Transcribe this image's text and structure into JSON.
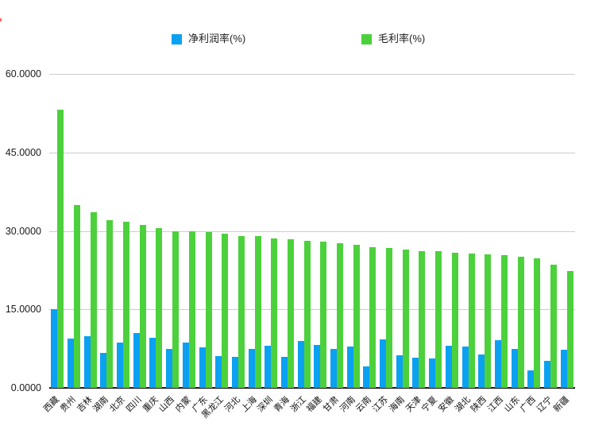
{
  "legend": {
    "items": [
      {
        "label": "净利润率(%)"
      },
      {
        "label": "毛利率(%)"
      }
    ]
  },
  "chart_data": {
    "type": "bar",
    "title": "",
    "xlabel": "",
    "ylabel": "",
    "grid": true,
    "legend_position": "top",
    "ylim": [
      0,
      60
    ],
    "yticks": [
      0,
      15,
      30,
      45,
      60
    ],
    "ytick_labels": [
      "0.0000",
      "15.0000",
      "30.0000",
      "45.0000",
      "60.0000"
    ],
    "categories": [
      "西藏",
      "贵州",
      "吉林",
      "湖南",
      "北京",
      "四川",
      "重庆",
      "山西",
      "内蒙",
      "广东",
      "黑龙江",
      "河北",
      "上海",
      "深圳",
      "青海",
      "浙江",
      "福建",
      "甘肃",
      "河南",
      "云南",
      "江苏",
      "海南",
      "天津",
      "宁夏",
      "安徽",
      "湖北",
      "陕西",
      "江西",
      "山东",
      "广西",
      "辽宁",
      "新疆"
    ],
    "series": [
      {
        "name": "净利润率(%)",
        "color": "#0aa1f2",
        "values": [
          15.0,
          9.4,
          9.8,
          6.7,
          8.6,
          10.5,
          9.5,
          7.5,
          8.6,
          7.7,
          6.1,
          6.0,
          7.4,
          8.0,
          6.0,
          9.0,
          8.2,
          7.5,
          7.9,
          4.1,
          9.2,
          6.3,
          5.7,
          5.6,
          8.1,
          7.9,
          6.4,
          9.1,
          7.4,
          3.4,
          5.2,
          7.3
        ]
      },
      {
        "name": "毛利率(%)",
        "color": "#4cd13c",
        "values": [
          53.1,
          34.9,
          33.5,
          32.1,
          31.8,
          31.1,
          30.5,
          30.0,
          29.9,
          29.8,
          29.4,
          29.0,
          29.0,
          28.6,
          28.4,
          28.1,
          27.9,
          27.6,
          27.4,
          26.9,
          26.8,
          26.5,
          26.2,
          26.1,
          25.8,
          25.7,
          25.5,
          25.4,
          25.1,
          24.7,
          23.5,
          22.4
        ]
      }
    ]
  }
}
